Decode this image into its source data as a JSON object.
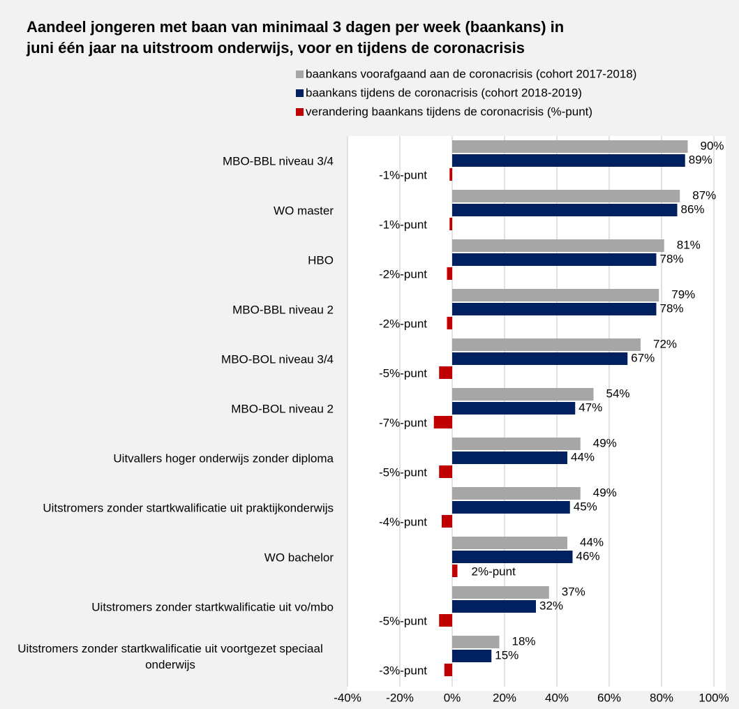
{
  "chart_data": {
    "type": "bar",
    "title": "Aandeel jongeren met baan van minimaal 3 dagen per week (baankans) in juni één jaar na uitstroom onderwijs, voor en tijdens de coronacrisis",
    "categories": [
      "MBO-BBL niveau 3/4",
      "WO master",
      "HBO",
      "MBO-BBL niveau 2",
      "MBO-BOL niveau 3/4",
      "MBO-BOL niveau 2",
      "Uitvallers hoger onderwijs zonder diploma",
      "Uitstromers zonder startkwalificatie uit praktijkonderwijs",
      "WO bachelor",
      "Uitstromers zonder startkwalificatie uit vo/mbo",
      "Uitstromers zonder startkwalificatie uit voortgezet speciaal onderwijs"
    ],
    "series": [
      {
        "name": "baankans voorafgaand aan de coronacrisis (cohort 2017-2018)",
        "color": "#a6a6a6",
        "values": [
          90,
          87,
          81,
          79,
          72,
          54,
          49,
          49,
          44,
          37,
          18
        ],
        "value_labels": [
          "90%",
          "87%",
          "81%",
          "79%",
          "72%",
          "54%",
          "49%",
          "49%",
          "44%",
          "37%",
          "18%"
        ]
      },
      {
        "name": "baankans tijdens de coronacrisis (cohort 2018-2019)",
        "color": "#002060",
        "values": [
          89,
          86,
          78,
          78,
          67,
          47,
          44,
          45,
          46,
          32,
          15
        ],
        "value_labels": [
          "89%",
          "86%",
          "78%",
          "78%",
          "67%",
          "47%",
          "44%",
          "45%",
          "46%",
          "32%",
          "15%"
        ]
      },
      {
        "name": "verandering baankans tijdens de coronacrisis (%-punt)",
        "color": "#c00000",
        "values": [
          -1,
          -1,
          -2,
          -2,
          -5,
          -7,
          -5,
          -4,
          2,
          -5,
          -3
        ],
        "value_labels": [
          "-1%-punt",
          "-1%-punt",
          "-2%-punt",
          "-2%-punt",
          "-5%-punt",
          "-7%-punt",
          "-5%-punt",
          "-4%-punt",
          "2%-punt",
          "-5%-punt",
          "-3%-punt"
        ]
      }
    ],
    "xlim": [
      -40,
      100
    ],
    "xticks": [
      {
        "value": -40,
        "label": "-40%"
      },
      {
        "value": -20,
        "label": "-20%"
      },
      {
        "value": 0,
        "label": "0%"
      },
      {
        "value": 20,
        "label": "20%"
      },
      {
        "value": 40,
        "label": "40%"
      },
      {
        "value": 60,
        "label": "60%"
      },
      {
        "value": 80,
        "label": "80%"
      },
      {
        "value": 100,
        "label": "100%"
      }
    ],
    "grid": true
  }
}
